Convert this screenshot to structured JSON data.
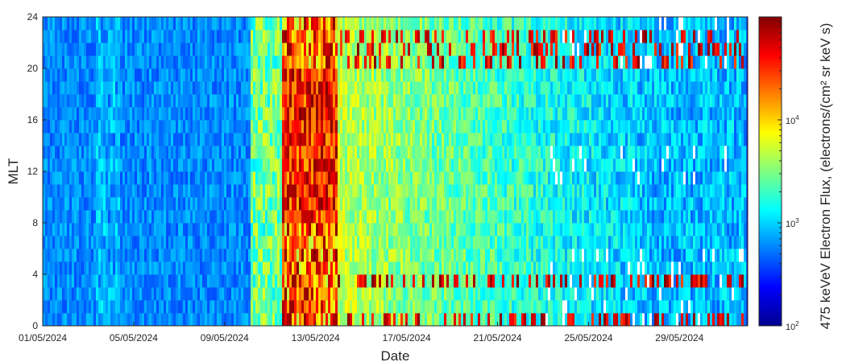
{
  "chart_data": {
    "type": "heatmap",
    "xlabel": "Date",
    "ylabel": "MLT",
    "colorbar_label": "475 keVeV Electron Flux, (electrons/(cm² sr keV s)",
    "x_ticks": [
      "01/05/2024",
      "05/05/2024",
      "09/05/2024",
      "13/05/2024",
      "17/05/2024",
      "21/05/2024",
      "25/05/2024",
      "29/05/2024"
    ],
    "xlim": [
      "2024-05-01",
      "2024-06-01"
    ],
    "y_ticks": [
      0,
      4,
      8,
      12,
      16,
      20,
      24
    ],
    "ylim": [
      0,
      24
    ],
    "colorbar": {
      "scale": "log",
      "range": [
        100,
        100000
      ],
      "tick_labels": [
        {
          "value": 100,
          "base": "10",
          "exp": "2"
        },
        {
          "value": 1000,
          "base": "10",
          "exp": "3"
        },
        {
          "value": 10000,
          "base": "10",
          "exp": "4"
        }
      ],
      "colormap": "jet"
    },
    "storm_onset_date": "2024-05-11",
    "colors": {
      "axis": "#262626",
      "missing": "#ffffff"
    }
  }
}
